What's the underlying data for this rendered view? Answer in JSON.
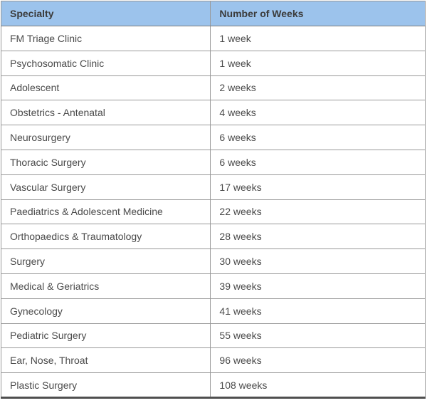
{
  "table": {
    "columns": [
      "Specialty",
      "Number of Weeks"
    ],
    "rows": [
      [
        "FM Triage Clinic",
        "1 week"
      ],
      [
        "Psychosomatic Clinic",
        "1 week"
      ],
      [
        "Adolescent",
        "2 weeks"
      ],
      [
        "Obstetrics - Antenatal",
        "4 weeks"
      ],
      [
        "Neurosurgery",
        "6 weeks"
      ],
      [
        "Thoracic Surgery",
        "6 weeks"
      ],
      [
        "Vascular Surgery",
        "17 weeks"
      ],
      [
        "Paediatrics & Adolescent Medicine",
        "22 weeks"
      ],
      [
        "Orthopaedics & Traumatology",
        "28 weeks"
      ],
      [
        "Surgery",
        "30 weeks"
      ],
      [
        "Medical & Geriatrics",
        "39 weeks"
      ],
      [
        "Gynecology",
        "41 weeks"
      ],
      [
        "Pediatric Surgery",
        "55 weeks"
      ],
      [
        "Ear, Nose, Throat",
        "96 weeks"
      ],
      [
        "Plastic Surgery",
        "108 weeks"
      ]
    ],
    "colors": {
      "header_bg": "#9cc3ec",
      "header_text": "#3b3b3b",
      "cell_text": "#4a4a4a",
      "border_inner": "#999999",
      "border_outer": "#7d7d7d",
      "border_bottom": "#4f4f4f"
    }
  },
  "chart_data": {
    "type": "table",
    "title": "",
    "columns": [
      "Specialty",
      "Number of Weeks"
    ],
    "categories": [
      "FM Triage Clinic",
      "Psychosomatic Clinic",
      "Adolescent",
      "Obstetrics - Antenatal",
      "Neurosurgery",
      "Thoracic Surgery",
      "Vascular Surgery",
      "Paediatrics & Adolescent Medicine",
      "Orthopaedics & Traumatology",
      "Surgery",
      "Medical & Geriatrics",
      "Gynecology",
      "Pediatric Surgery",
      "Ear, Nose, Throat",
      "Plastic Surgery"
    ],
    "values": [
      1,
      1,
      2,
      4,
      6,
      6,
      17,
      22,
      28,
      30,
      39,
      41,
      55,
      96,
      108
    ],
    "value_unit": "weeks"
  }
}
